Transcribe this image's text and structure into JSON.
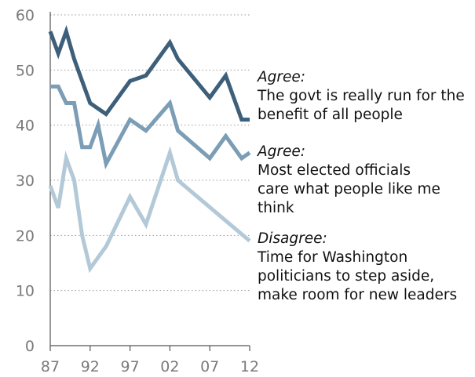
{
  "chart_data": {
    "type": "line",
    "title": "",
    "xlabel": "",
    "ylabel": "",
    "ylim": [
      0,
      60
    ],
    "yticks": [
      0,
      10,
      20,
      30,
      40,
      50,
      60
    ],
    "xlim": [
      1987,
      2012
    ],
    "xticks": [
      {
        "value": 1987,
        "label": "87"
      },
      {
        "value": 1992,
        "label": "92"
      },
      {
        "value": 1997,
        "label": "97"
      },
      {
        "value": 2002,
        "label": "02"
      },
      {
        "value": 2007,
        "label": "07"
      },
      {
        "value": 2012,
        "label": "12"
      }
    ],
    "grid": "horizontal-dotted",
    "series": [
      {
        "kind": "Agree:",
        "description": "The govt is really run for the benefit of all people",
        "color": "#3d5f7a",
        "x": [
          1987,
          1988,
          1989,
          1990,
          1991,
          1992,
          1994,
          1997,
          1999,
          2002,
          2003,
          2007,
          2009,
          2011,
          2012
        ],
        "y": [
          57,
          53,
          57,
          52,
          48,
          44,
          42,
          48,
          49,
          55,
          52,
          45,
          49,
          41,
          41
        ]
      },
      {
        "kind": "Agree:",
        "description": "Most elected officials care what people like me think",
        "color": "#7b9db5",
        "x": [
          1987,
          1988,
          1989,
          1990,
          1991,
          1992,
          1993,
          1994,
          1997,
          1999,
          2002,
          2003,
          2007,
          2009,
          2011,
          2012
        ],
        "y": [
          47,
          47,
          44,
          44,
          36,
          36,
          40,
          33,
          41,
          39,
          44,
          39,
          34,
          38,
          34,
          35
        ]
      },
      {
        "kind": "Disagree:",
        "description": "Time for Washington politicians to step aside, make room for new leaders",
        "color": "#b3c9d8",
        "x": [
          1987,
          1988,
          1989,
          1990,
          1991,
          1992,
          1994,
          1997,
          1999,
          2002,
          2003,
          2012
        ],
        "y": [
          29,
          25,
          34,
          30,
          20,
          14,
          18,
          27,
          22,
          35,
          30,
          19
        ]
      }
    ]
  }
}
